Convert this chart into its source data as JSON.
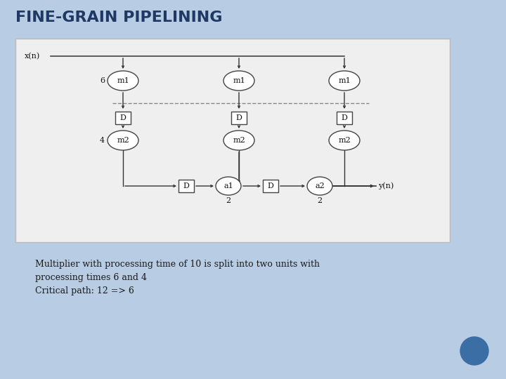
{
  "title": "FINE-GRAIN PIPELINING",
  "title_color": "#1F3864",
  "background_color": "#B8CCE4",
  "diagram_bg": "#EFEFEF",
  "text_lines": [
    "Multiplier with processing time of 10 is split into two units with",
    "processing times 6 and 4",
    "Critical path: 12 => 6"
  ],
  "text_color": "#1a1a1a",
  "circle_color": "#FFFFFF",
  "circle_edge": "#444444",
  "rect_color": "#FFFFFF",
  "rect_edge": "#444444",
  "line_color": "#333333",
  "dashed_color": "#888888",
  "dot_color": "#3B6EA5"
}
